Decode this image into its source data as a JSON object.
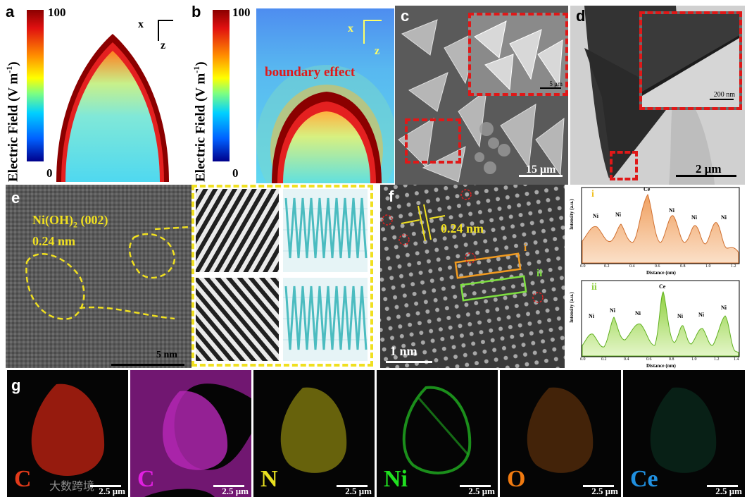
{
  "panel_a": {
    "letter": "a",
    "colorbar_title_prefix": "Electric Field (V m",
    "colorbar_title_exp": "-1",
    "colorbar_title_suffix": ")",
    "colorbar_max": "100",
    "colorbar_min": "0",
    "axis_x": "x",
    "axis_z": "z"
  },
  "panel_b": {
    "letter": "b",
    "colorbar_title_prefix": "Electric Field (V m",
    "colorbar_title_exp": "-1",
    "colorbar_title_suffix": ")",
    "colorbar_max": "100",
    "colorbar_min": "0",
    "annotation": "boundary effect",
    "axis_x": "x",
    "axis_z": "z"
  },
  "panel_c": {
    "letter": "c",
    "inset_scale": "5 μm",
    "scale": "15 μm"
  },
  "panel_d": {
    "letter": "d",
    "inset_scale": "200 nm",
    "scale": "2 μm"
  },
  "panel_e": {
    "letter": "e",
    "label_prefix": "Ni(OH)",
    "label_sub": "2",
    "label_suffix": " (002)",
    "spacing": "0.24 nm",
    "scale": "5 nm"
  },
  "panel_f": {
    "letter": "f",
    "spacing": "0.24 nm",
    "scale": "1 nm",
    "box_i": "i",
    "box_ii": "ii"
  },
  "profile_i": {
    "tag": "i",
    "ylabel": "Intensity (a.u.)",
    "xlabel": "Distance (nm)",
    "ticks": [
      "0.0",
      "0.2",
      "0.4",
      "0.6",
      "0.8",
      "1.0",
      "1.2"
    ],
    "peaks": [
      "Ni",
      "Ni",
      "Ce",
      "Ni",
      "Ni",
      "Ni"
    ]
  },
  "profile_ii": {
    "tag": "ii",
    "ylabel": "Intensity (a.u.)",
    "xlabel": "Distance (nm)",
    "ticks": [
      "0.0",
      "0.2",
      "0.4",
      "0.6",
      "0.8",
      "1.0",
      "1.2",
      "1.4"
    ],
    "peaks": [
      "Ni",
      "Ni",
      "Ni",
      "Ce",
      "Ni",
      "Ni",
      "Ni"
    ]
  },
  "panel_g": {
    "letter": "g",
    "maps": [
      {
        "element": "C",
        "scale": "2.5 μm",
        "color": "#e23a1a"
      },
      {
        "element": "C",
        "scale": "2.5 μm",
        "color": "#e020e0"
      },
      {
        "element": "N",
        "scale": "2.5 μm",
        "color": "#e8e020"
      },
      {
        "element": "Ni",
        "scale": "2.5 μm",
        "color": "#20e020"
      },
      {
        "element": "O",
        "scale": "2.5 μm",
        "color": "#f07a10"
      },
      {
        "element": "Ce",
        "scale": "2.5 μm",
        "color": "#2090e0"
      }
    ],
    "watermark": "大数跨境"
  }
}
